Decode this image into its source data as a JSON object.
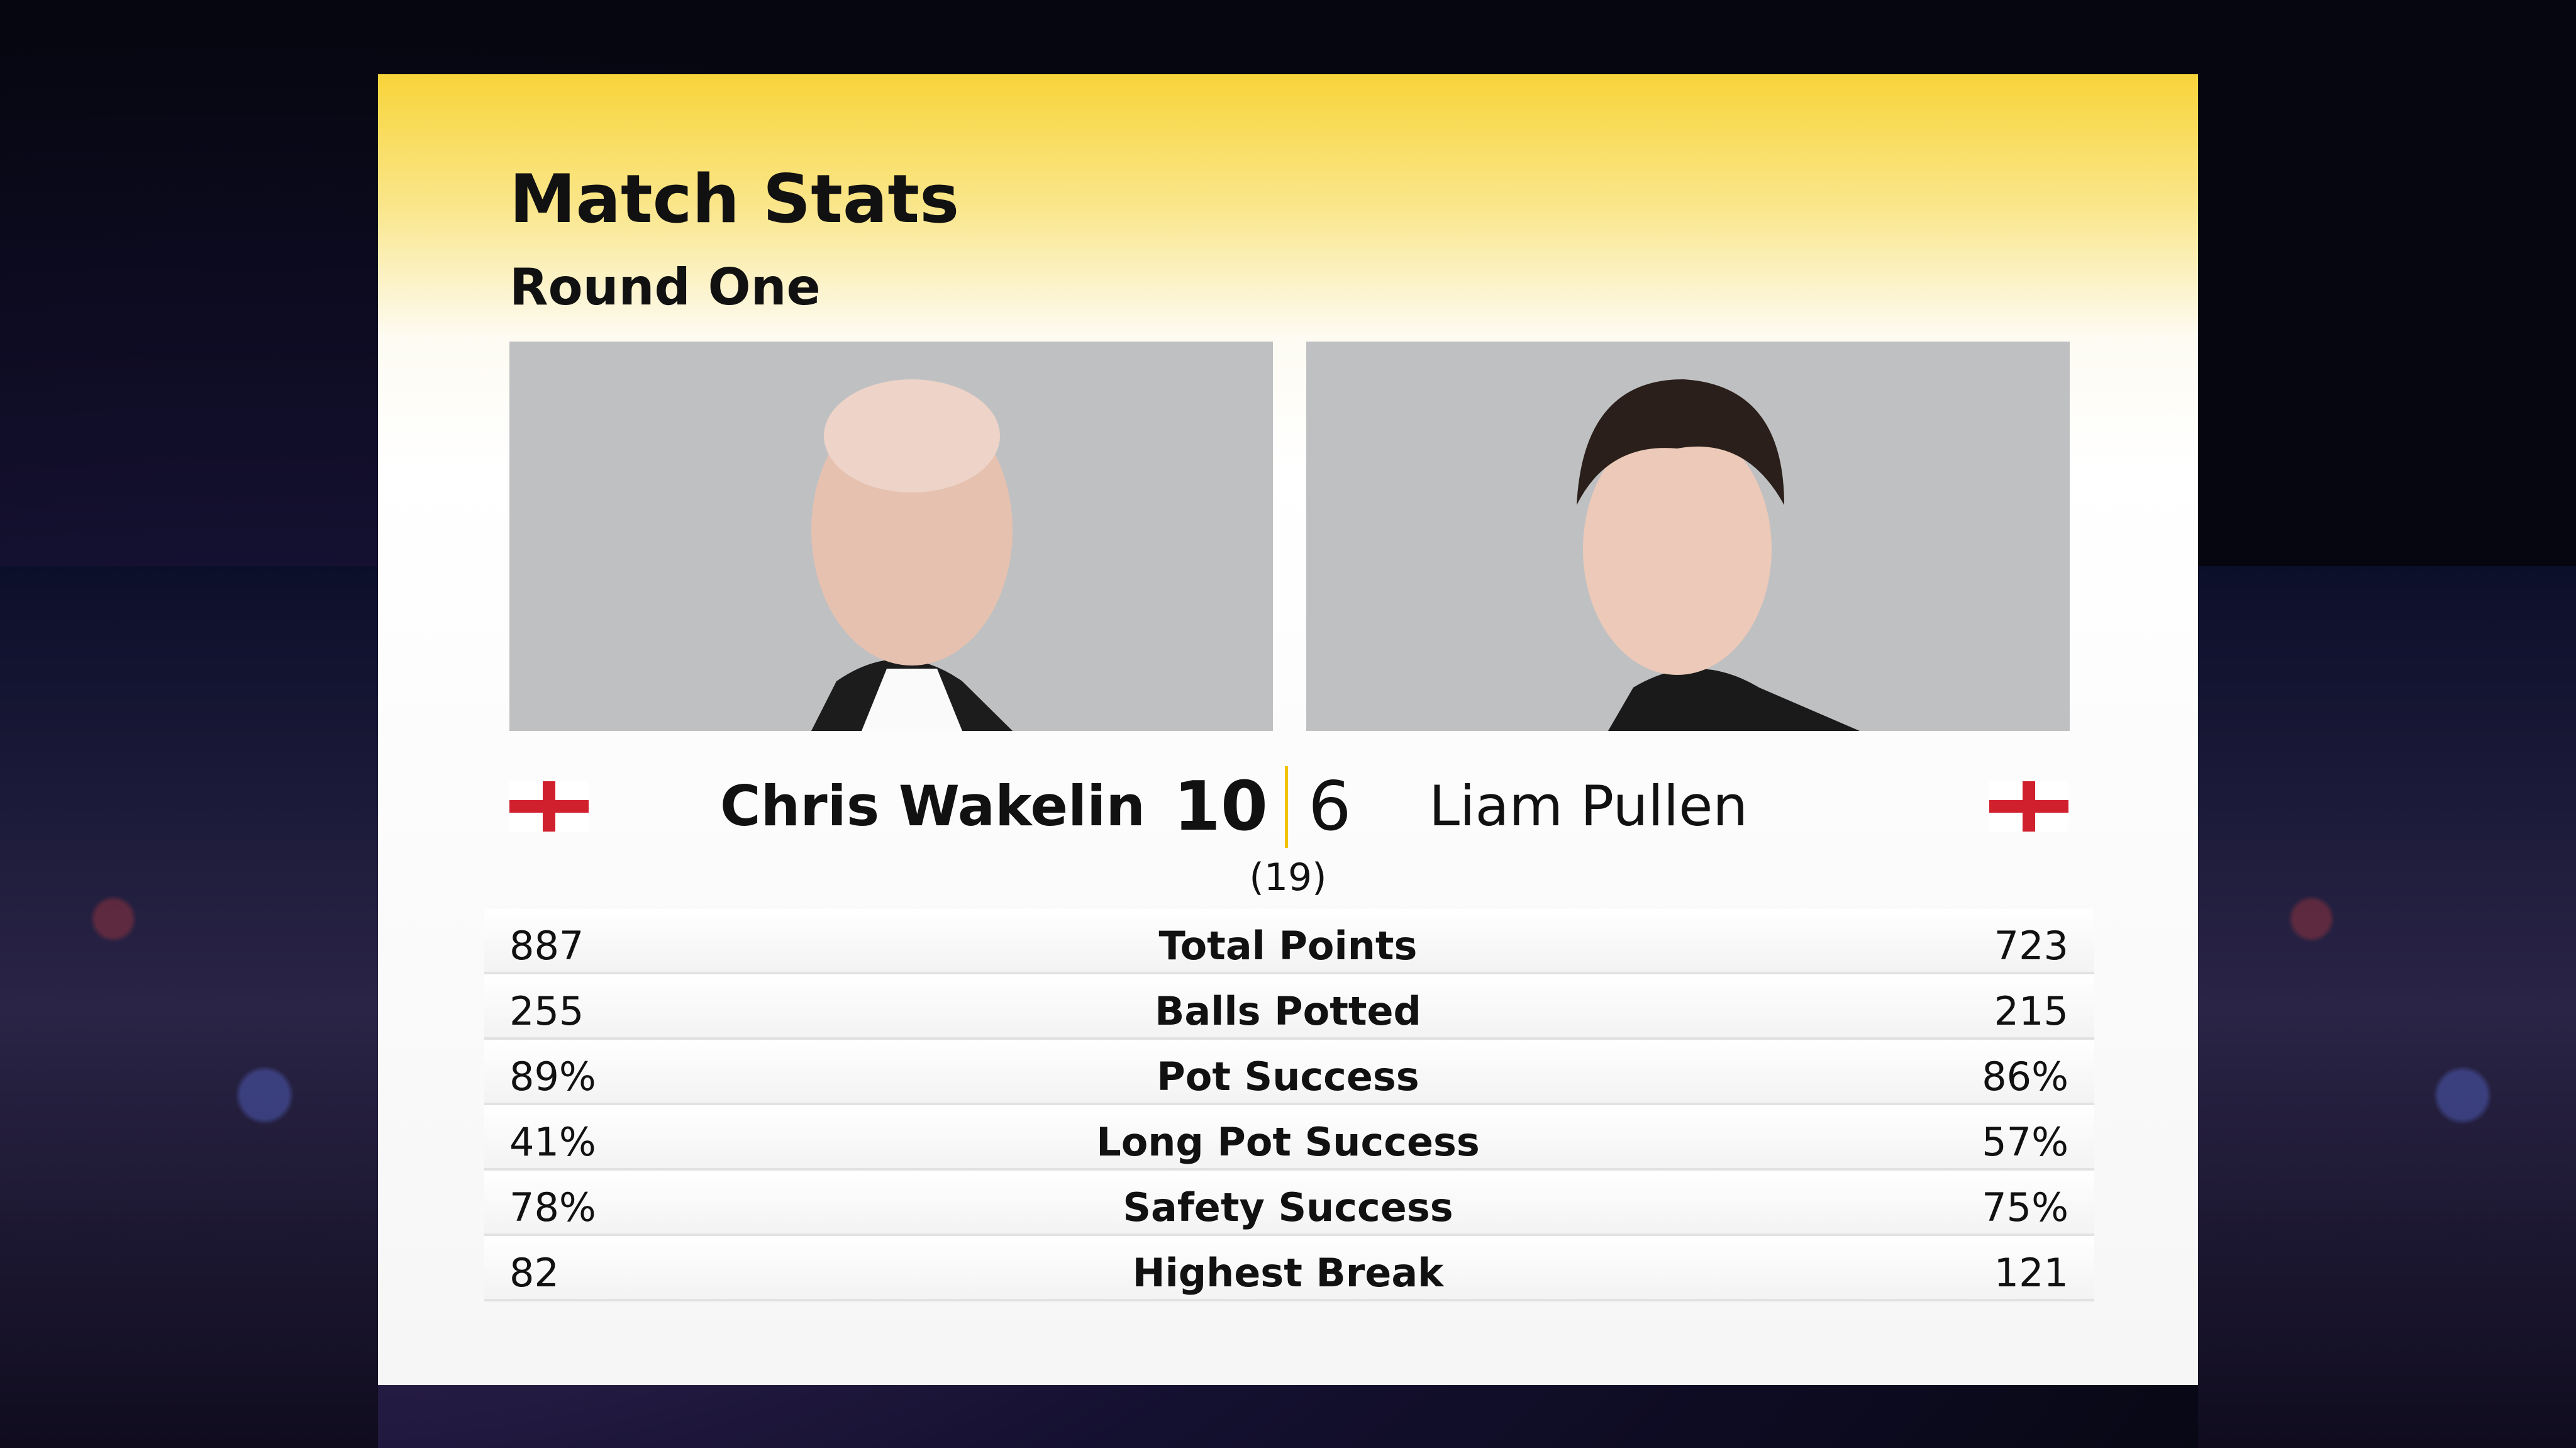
{
  "header": {
    "title": "Match Stats",
    "subtitle": "Round One"
  },
  "players": [
    {
      "name": "Chris Wakelin",
      "score": "10"
    },
    {
      "name": "Liam Pullen",
      "score": "6"
    }
  ],
  "best_of": "(19)",
  "stats": [
    {
      "label": "Total Points",
      "left": "887",
      "right": "723"
    },
    {
      "label": "Balls Potted",
      "left": "255",
      "right": "215"
    },
    {
      "label": "Pot Success",
      "left": "89%",
      "right": "86%"
    },
    {
      "label": "Long Pot Success",
      "left": "41%",
      "right": "57%"
    },
    {
      "label": "Safety Success",
      "left": "78%",
      "right": "75%"
    },
    {
      "label": "Highest Break",
      "left": "82",
      "right": "121"
    }
  ]
}
